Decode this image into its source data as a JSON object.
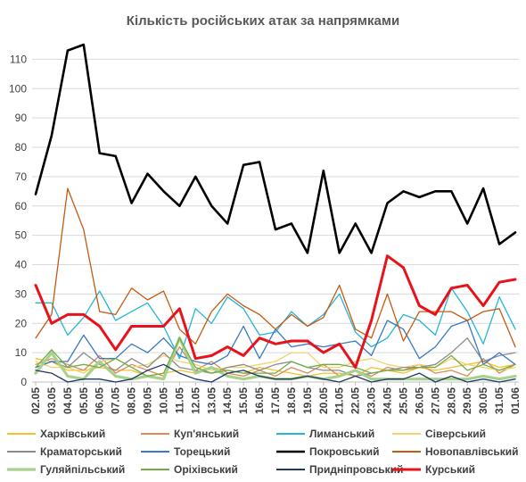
{
  "chart_data": {
    "type": "line",
    "title": "Кількість російських атак за напрямками",
    "xlabel": "",
    "ylabel": "",
    "ylim": [
      0,
      115
    ],
    "yticks": [
      0,
      10,
      20,
      30,
      40,
      50,
      60,
      70,
      80,
      90,
      100,
      110
    ],
    "grid": "horizontal",
    "legend_position": "bottom",
    "categories": [
      "02.05",
      "03.05",
      "04.05",
      "05.05",
      "06.05",
      "07.05",
      "08.05",
      "09.05",
      "10.05",
      "11.05",
      "12.05",
      "13.05",
      "14.05",
      "15.05",
      "16.05",
      "17.05",
      "18.05",
      "19.05",
      "20.05",
      "21.05",
      "22.05",
      "23.05",
      "24.05",
      "25.05",
      "26.05",
      "27.05",
      "28.05",
      "29.05",
      "30.05",
      "31.05",
      "01.06"
    ],
    "series": [
      {
        "name": "Харківський",
        "color": "#f2c12e",
        "width": 1.3,
        "values": [
          8,
          7,
          4,
          4,
          5,
          4,
          4,
          2,
          3,
          4,
          3,
          5,
          4,
          3,
          5,
          4,
          3,
          2,
          3,
          3,
          2,
          5,
          4,
          3,
          5,
          4,
          5,
          6,
          7,
          5,
          6
        ]
      },
      {
        "name": "Куп'янський",
        "color": "#d98b5b",
        "width": 1.3,
        "values": [
          6,
          8,
          6,
          4,
          9,
          3,
          6,
          4,
          2,
          12,
          4,
          7,
          3,
          2,
          4,
          2,
          5,
          3,
          6,
          2,
          4,
          2,
          5,
          4,
          6,
          3,
          4,
          2,
          8,
          3,
          6
        ]
      },
      {
        "name": "Лиманський",
        "color": "#25b6d6",
        "width": 1.3,
        "values": [
          27,
          27,
          16,
          22,
          31,
          21,
          24,
          27,
          19,
          8,
          25,
          20,
          29,
          25,
          16,
          17,
          24,
          19,
          23,
          30,
          17,
          12,
          15,
          23,
          21,
          16,
          32,
          24,
          13,
          29,
          18
        ]
      },
      {
        "name": "Сіверський",
        "color": "#f2d36b",
        "width": 1.3,
        "values": [
          7,
          5,
          5,
          3,
          7,
          8,
          5,
          6,
          9,
          7,
          6,
          4,
          5,
          5,
          6,
          7,
          10,
          10,
          5,
          5,
          7,
          8,
          6,
          5,
          6,
          5,
          8,
          6,
          5,
          4,
          5
        ]
      },
      {
        "name": "Краматорський",
        "color": "#8c8c8c",
        "width": 1.3,
        "values": [
          5,
          7,
          5,
          10,
          6,
          4,
          8,
          5,
          10,
          5,
          4,
          3,
          5,
          6,
          4,
          6,
          7,
          5,
          4,
          4,
          2,
          3,
          4,
          5,
          5,
          6,
          10,
          15,
          7,
          9,
          10
        ]
      },
      {
        "name": "Торецький",
        "color": "#3a78c2",
        "width": 1.3,
        "values": [
          5,
          7,
          7,
          16,
          8,
          8,
          13,
          10,
          15,
          9,
          7,
          6,
          9,
          19,
          8,
          18,
          12,
          13,
          12,
          13,
          14,
          9,
          21,
          18,
          8,
          12,
          19,
          21,
          6,
          10,
          6
        ]
      },
      {
        "name": "Покровський",
        "color": "#000000",
        "width": 2.6,
        "values": [
          64,
          84,
          113,
          115,
          78,
          77,
          61,
          71,
          65,
          60,
          70,
          60,
          54,
          74,
          75,
          52,
          54,
          44,
          72,
          44,
          54,
          44,
          61,
          65,
          63,
          65,
          65,
          54,
          66,
          47,
          51
        ]
      },
      {
        "name": "Новопавлівський",
        "color": "#c55a11",
        "width": 1.3,
        "values": [
          15,
          23,
          66,
          52,
          24,
          23,
          32,
          28,
          31,
          18,
          13,
          24,
          30,
          26,
          23,
          18,
          23,
          19,
          22,
          33,
          18,
          15,
          30,
          14,
          24,
          24,
          24,
          21,
          24,
          25,
          12
        ]
      },
      {
        "name": "Гуляйпільський",
        "color": "#a9d18e",
        "width": 3.2,
        "values": [
          3,
          10,
          2,
          1,
          7,
          2,
          1,
          2,
          1,
          15,
          3,
          5,
          2,
          1,
          2,
          1,
          1,
          2,
          1,
          2,
          4,
          1,
          1,
          1,
          1,
          1,
          1,
          1,
          2,
          1,
          2
        ]
      },
      {
        "name": "Оріхівський",
        "color": "#70ad47",
        "width": 1.3,
        "values": [
          5,
          11,
          5,
          6,
          5,
          8,
          5,
          2,
          3,
          15,
          5,
          3,
          4,
          3,
          3,
          3,
          7,
          5,
          6,
          6,
          5,
          3,
          4,
          4,
          5,
          5,
          9,
          4,
          6,
          4,
          6
        ]
      },
      {
        "name": "Придніпровський",
        "color": "#1f3864",
        "width": 1.3,
        "values": [
          4,
          3,
          0,
          1,
          1,
          0,
          1,
          4,
          6,
          3,
          1,
          0,
          3,
          4,
          2,
          1,
          1,
          2,
          1,
          0,
          2,
          0,
          1,
          1,
          3,
          0,
          2,
          0,
          1,
          0,
          1
        ]
      },
      {
        "name": "Курський",
        "color": "#e8121b",
        "width": 3.0,
        "values": [
          33,
          20,
          23,
          23,
          19,
          11,
          19,
          19,
          19,
          25,
          8,
          9,
          12,
          9,
          15,
          13,
          14,
          14,
          10,
          13,
          5,
          21,
          43,
          39,
          26,
          23,
          32,
          33,
          26,
          34,
          35
        ]
      }
    ]
  }
}
